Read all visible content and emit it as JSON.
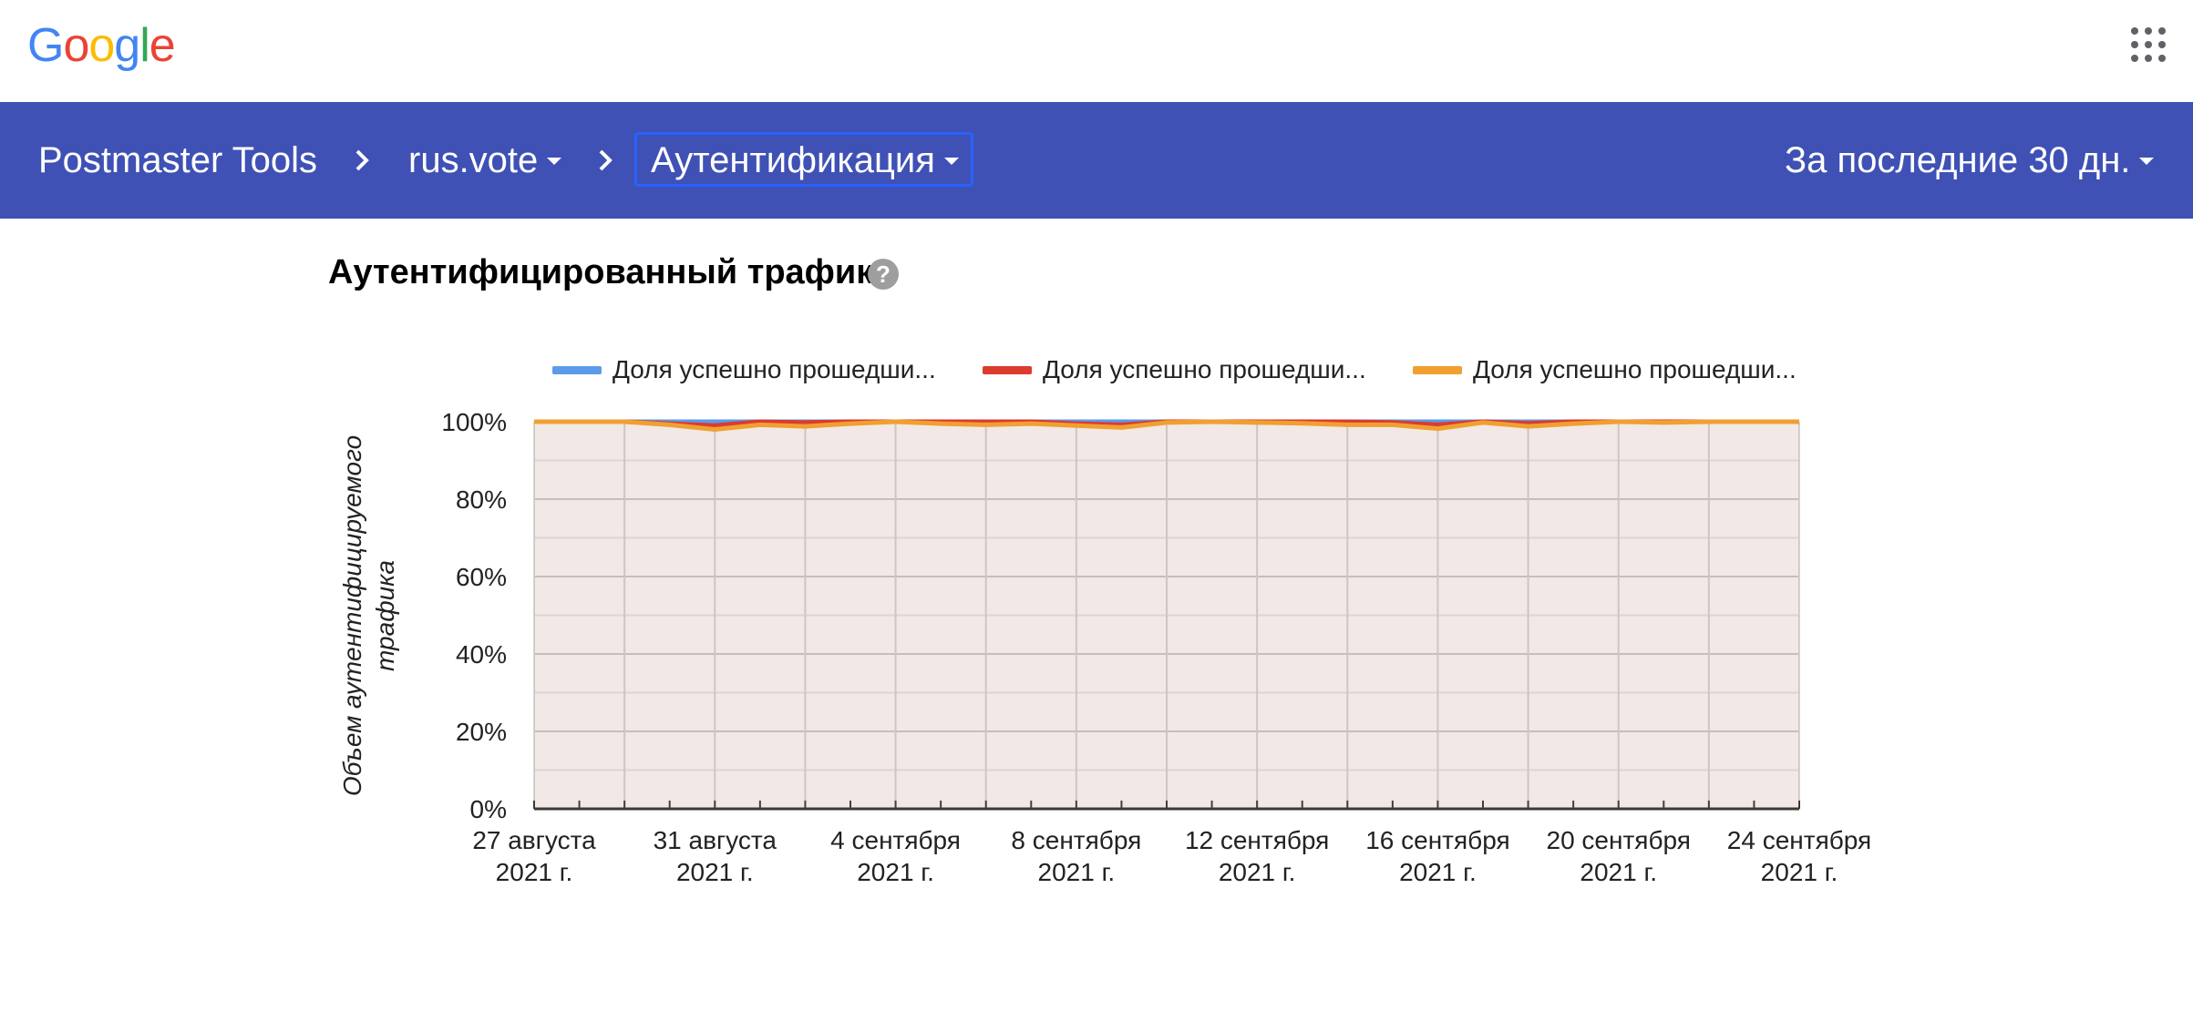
{
  "header": {
    "logo_text": "Google",
    "logo_colors": [
      "#4285F4",
      "#EA4335",
      "#FBBC05",
      "#4285F4",
      "#34A853",
      "#EA4335"
    ],
    "apps_icon": "apps-grid-icon"
  },
  "navbar": {
    "background": "#3f51b5",
    "product": "Postmaster Tools",
    "domain": "rus.vote",
    "section": "Аутентификация",
    "range": "За последние 30 дн."
  },
  "card": {
    "title": "Аутентифицированный трафик",
    "help_icon": "help-icon"
  },
  "chart_data": {
    "type": "area",
    "title": "Аутентифицированный трафик",
    "ylabel": "Объем аутентифицируемого трафика",
    "ylim": [
      0,
      100
    ],
    "y_ticks": [
      "100%",
      "80%",
      "60%",
      "40%",
      "20%",
      "0%"
    ],
    "grid": true,
    "legend_position": "top",
    "x_tick_labels": [
      [
        "27 августа",
        "2021 г."
      ],
      [
        "31 августа",
        "2021 г."
      ],
      [
        "4 сентября",
        "2021 г."
      ],
      [
        "8 сентября",
        "2021 г."
      ],
      [
        "12 сентября",
        "2021 г."
      ],
      [
        "16 сентября",
        "2021 г."
      ],
      [
        "20 сентября",
        "2021 г."
      ],
      [
        "24 сентября",
        "2021 г."
      ]
    ],
    "x": [
      "2021-08-27",
      "2021-08-28",
      "2021-08-29",
      "2021-08-30",
      "2021-08-31",
      "2021-09-01",
      "2021-09-02",
      "2021-09-03",
      "2021-09-04",
      "2021-09-05",
      "2021-09-06",
      "2021-09-07",
      "2021-09-08",
      "2021-09-09",
      "2021-09-10",
      "2021-09-11",
      "2021-09-12",
      "2021-09-13",
      "2021-09-14",
      "2021-09-15",
      "2021-09-16",
      "2021-09-17",
      "2021-09-18",
      "2021-09-19",
      "2021-09-20",
      "2021-09-21",
      "2021-09-22",
      "2021-09-23",
      "2021-09-24"
    ],
    "series": [
      {
        "name": "Доля успешно прошедши...",
        "color": "#5b9bea",
        "values": [
          100,
          100,
          100,
          100,
          100,
          100,
          100,
          100,
          100,
          100,
          100,
          100,
          100,
          100,
          100,
          100,
          100,
          100,
          100,
          100,
          100,
          100,
          100,
          100,
          100,
          100,
          100,
          100,
          100
        ]
      },
      {
        "name": "Доля успешно прошедши...",
        "color": "#dc3b2f",
        "values": [
          100,
          100,
          100,
          99.5,
          99,
          100,
          99.8,
          100,
          100,
          100,
          100,
          100,
          99.5,
          99.2,
          100,
          100,
          100,
          100,
          100,
          99.8,
          99.2,
          100,
          99.6,
          100,
          100,
          100,
          100,
          100,
          100
        ]
      },
      {
        "name": "Доля успешно прошедши...",
        "color": "#f0a030",
        "values": [
          100,
          100,
          100,
          99.2,
          98,
          99.2,
          98.8,
          99.5,
          100,
          99.5,
          99.2,
          99.5,
          99,
          98.5,
          99.8,
          100,
          99.8,
          99.6,
          99.2,
          99.2,
          98.2,
          99.8,
          98.8,
          99.5,
          100,
          99.8,
          100,
          100,
          100
        ]
      }
    ]
  }
}
